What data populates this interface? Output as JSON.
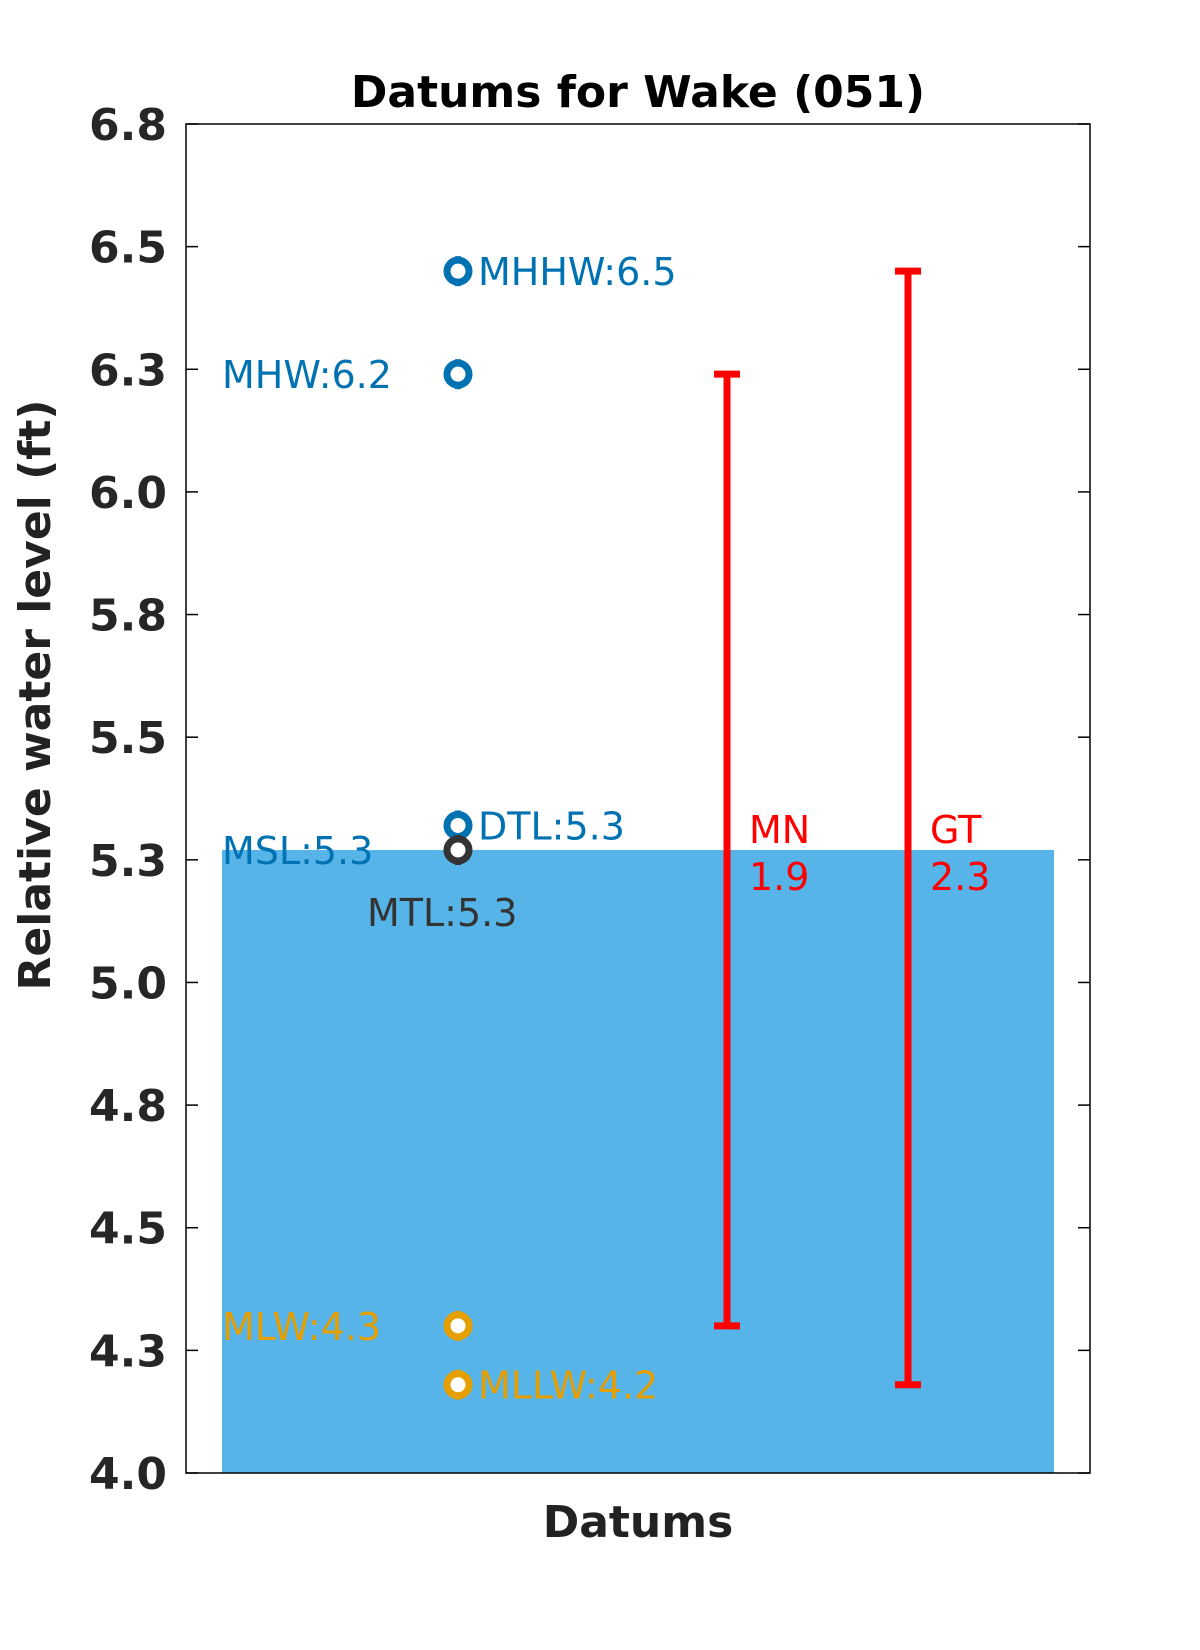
{
  "chart_data": {
    "type": "bar",
    "title": "Datums for Wake (051)",
    "xlabel": "Datums",
    "ylabel": "Relative water level (ft)",
    "ylim": [
      4.0,
      6.75
    ],
    "yticks": [
      4.0,
      4.25,
      4.5,
      4.75,
      5.0,
      5.25,
      5.5,
      5.75,
      6.0,
      6.25,
      6.5,
      6.75
    ],
    "ytick_labels": [
      "4.0",
      "4.3",
      "4.5",
      "4.8",
      "5.0",
      "5.3",
      "5.5",
      "5.8",
      "6.0",
      "6.3",
      "6.5",
      "6.8"
    ],
    "grid": false,
    "bar": {
      "value": 5.27,
      "color": "#56b4e9",
      "label": "MSL:5.3"
    },
    "datums": [
      {
        "name": "MHHW",
        "label": "MHHW:6.5",
        "value": 6.45,
        "color": "#0072b2",
        "label_side": "right"
      },
      {
        "name": "MHW",
        "label": "MHW:6.2",
        "value": 6.24,
        "color": "#0072b2",
        "label_side": "left"
      },
      {
        "name": "DTL",
        "label": "DTL:5.3",
        "value": 5.32,
        "color": "#0072b2",
        "label_side": "right"
      },
      {
        "name": "MTL",
        "label": "MTL:5.3",
        "value": 5.27,
        "color": "#333333",
        "label_side": "below"
      },
      {
        "name": "MLW",
        "label": "MLW:4.3",
        "value": 4.3,
        "color": "#e69f00",
        "label_side": "left"
      },
      {
        "name": "MLLW",
        "label": "MLLW:4.2",
        "value": 4.18,
        "color": "#e69f00",
        "label_side": "right"
      }
    ],
    "ranges": [
      {
        "name": "MN",
        "lines": [
          "MN",
          "1.9"
        ],
        "low": 4.3,
        "high": 6.24,
        "color": "#ff0000"
      },
      {
        "name": "GT",
        "lines": [
          "GT",
          "2.3"
        ],
        "low": 4.18,
        "high": 6.45,
        "color": "#ff0000"
      }
    ]
  }
}
